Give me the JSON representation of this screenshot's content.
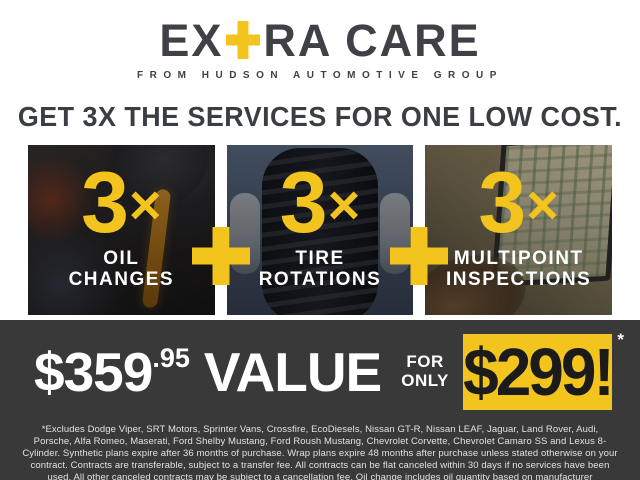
{
  "colors": {
    "yellow": "#F2C41D",
    "charcoal": "#393939",
    "dark_text": "#3F4146",
    "white": "#FFFFFF"
  },
  "brand": {
    "logo_part1": "EX",
    "logo_part2": "RA CARE",
    "plus_icon": "yellow-plus-replacing-T",
    "tagline": "FROM HUDSON AUTOMOTIVE GROUP"
  },
  "headline": "GET 3X THE SERVICES FOR ONE LOW COST.",
  "panels": [
    {
      "multiplier": "3",
      "times": "×",
      "label": "OIL CHANGES",
      "photo": "oil-pour-photo"
    },
    {
      "multiplier": "3",
      "times": "×",
      "label": "TIRE ROTATIONS",
      "photo": "tire-hold-photo"
    },
    {
      "multiplier": "3",
      "times": "×",
      "label": "MULTIPOINT INSPECTIONS",
      "photo": "laptop-inspection-photo"
    }
  ],
  "separators": {
    "plus": "+"
  },
  "pricing": {
    "value_dollars": "$359",
    "value_cents": ".95",
    "value_word": "VALUE",
    "for_word": "FOR",
    "only_word": "ONLY",
    "sale_price": "$299!",
    "asterisk": "*"
  },
  "disclaimer": "*Excludes Dodge Viper, SRT Motors, Sprinter Vans, Crossfire, EcoDiesels, Nissan GT-R, Nissan LEAF, Jaguar, Land Rover, Audi, Porsche, Alfa Romeo, Maserati, Ford Shelby Mustang, Ford Roush Mustang, Chevrolet Corvette, Chevrolet Camaro SS and Lexus 8-Cylinder. Synthetic plans expire after 36 months of purchase. Wrap plans expire 48 months after purchase unless stated otherwise on your contract. Contracts are transferable, subject to a transfer fee. All contracts can be flat canceled within 30 days if no services have been used. All other canceled contracts may be subject to a cancellation fee. Oil change includes oil quantity based on manufacturer recommendations. Diesel and synthetic upgrades are extra. See dealer for full details."
}
